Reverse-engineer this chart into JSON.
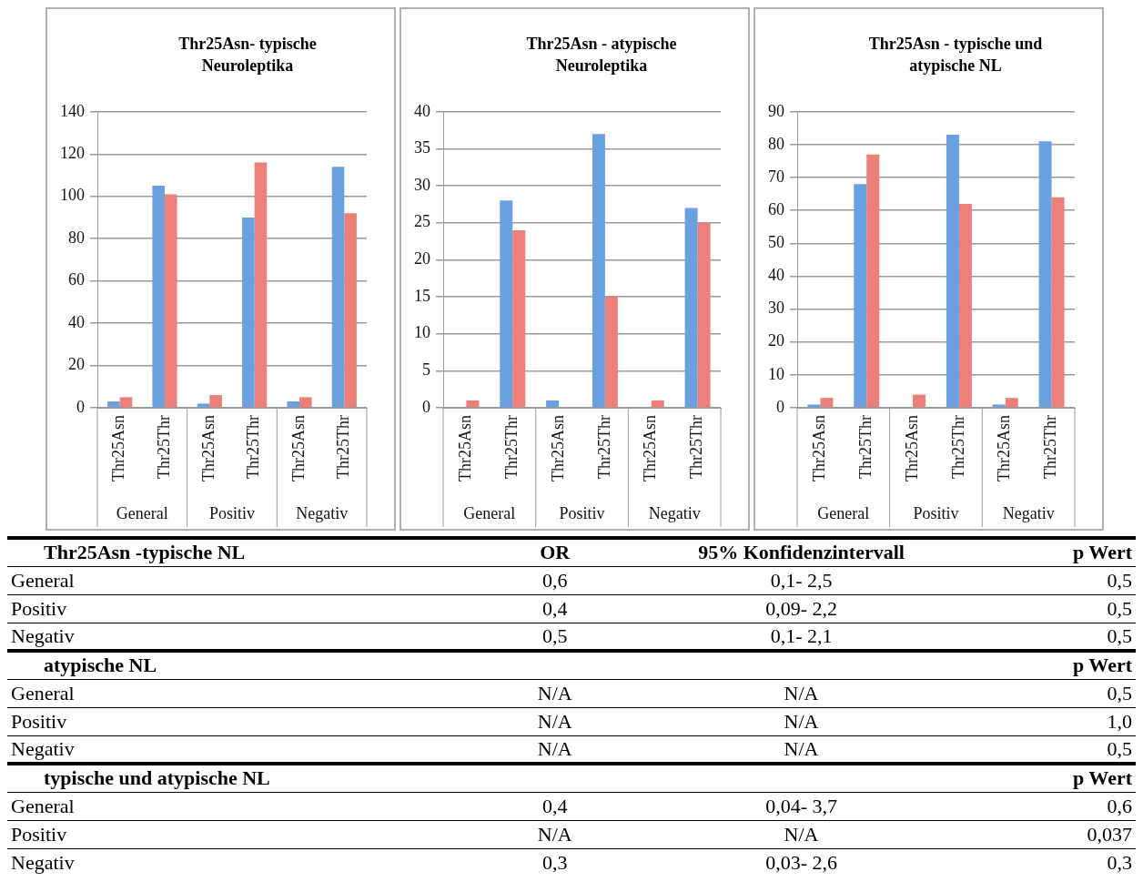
{
  "chart_data": [
    {
      "type": "bar",
      "title": "Thr25Asn- typische Neuroleptika",
      "categories": [
        "Thr25Asn",
        "Thr25Thr",
        "Thr25Asn",
        "Thr25Thr",
        "Thr25Asn",
        "Thr25Thr"
      ],
      "series": [
        {
          "color": "#6a9fe0",
          "values": [
            3,
            105,
            2,
            90,
            3,
            114
          ]
        },
        {
          "color": "#ec7f78",
          "values": [
            5,
            101,
            6,
            116,
            5,
            92
          ]
        }
      ],
      "ylim": [
        0,
        140
      ],
      "yticks": [
        0,
        20,
        40,
        60,
        80,
        100,
        120,
        140
      ],
      "grid": "y",
      "legend": false,
      "annotations": [
        "General",
        "Positiv",
        "Negativ"
      ]
    },
    {
      "type": "bar",
      "title": "Thr25Asn - atypische Neuroleptika",
      "categories": [
        "Thr25Asn",
        "Thr25Thr",
        "Thr25Asn",
        "Thr25Thr",
        "Thr25Asn",
        "Thr25Thr"
      ],
      "series": [
        {
          "color": "#6a9fe0",
          "values": [
            0,
            28,
            1,
            37,
            0,
            27
          ]
        },
        {
          "color": "#ec7f78",
          "values": [
            1,
            24,
            0,
            15,
            1,
            25
          ]
        }
      ],
      "ylim": [
        0,
        40
      ],
      "yticks": [
        0,
        5,
        10,
        15,
        20,
        25,
        30,
        35,
        40
      ],
      "grid": "y",
      "legend": false,
      "annotations": [
        "General",
        "Positiv",
        "Negativ"
      ]
    },
    {
      "type": "bar",
      "title": "Thr25Asn - typische und atypische NL",
      "categories": [
        "Thr25Asn",
        "Thr25Thr",
        "Thr25Asn",
        "Thr25Thr",
        "Thr25Asn",
        "Thr25Thr"
      ],
      "series": [
        {
          "color": "#6a9fe0",
          "values": [
            1,
            68,
            0,
            83,
            1,
            81
          ]
        },
        {
          "color": "#ec7f78",
          "values": [
            3,
            77,
            4,
            62,
            3,
            64
          ]
        }
      ],
      "ylim": [
        0,
        90
      ],
      "yticks": [
        0,
        10,
        20,
        30,
        40,
        50,
        60,
        70,
        80,
        90
      ],
      "grid": "y",
      "legend": false,
      "annotations": [
        "General",
        "Positiv",
        "Negativ"
      ]
    },
    {
      "type": "other",
      "annotations": [
        "Thr25Asn -typische NL",
        "OR",
        "95% Konfidenzintervall",
        "p Wert",
        "General",
        "0,6",
        "0,1- 2,5",
        "0,5",
        "Positiv",
        "0,4",
        "0,09- 2,2",
        "0,5",
        "Negativ",
        "0,5",
        "0,1- 2,1",
        "0,5",
        "atypische NL",
        "p Wert",
        "General",
        "N/A",
        "N/A",
        "0,5",
        "Positiv",
        "N/A",
        "N/A",
        "1,0",
        "Negativ",
        "N/A",
        "N/A",
        "0,5",
        "typische und atypische NL",
        "p Wert",
        "General",
        "0,4",
        "0,04- 3,7",
        "0,6",
        "Positiv",
        "N/A",
        "N/A",
        "0,037",
        "Negativ",
        "0,3",
        "0,03- 2,6",
        "0,3"
      ]
    }
  ]
}
